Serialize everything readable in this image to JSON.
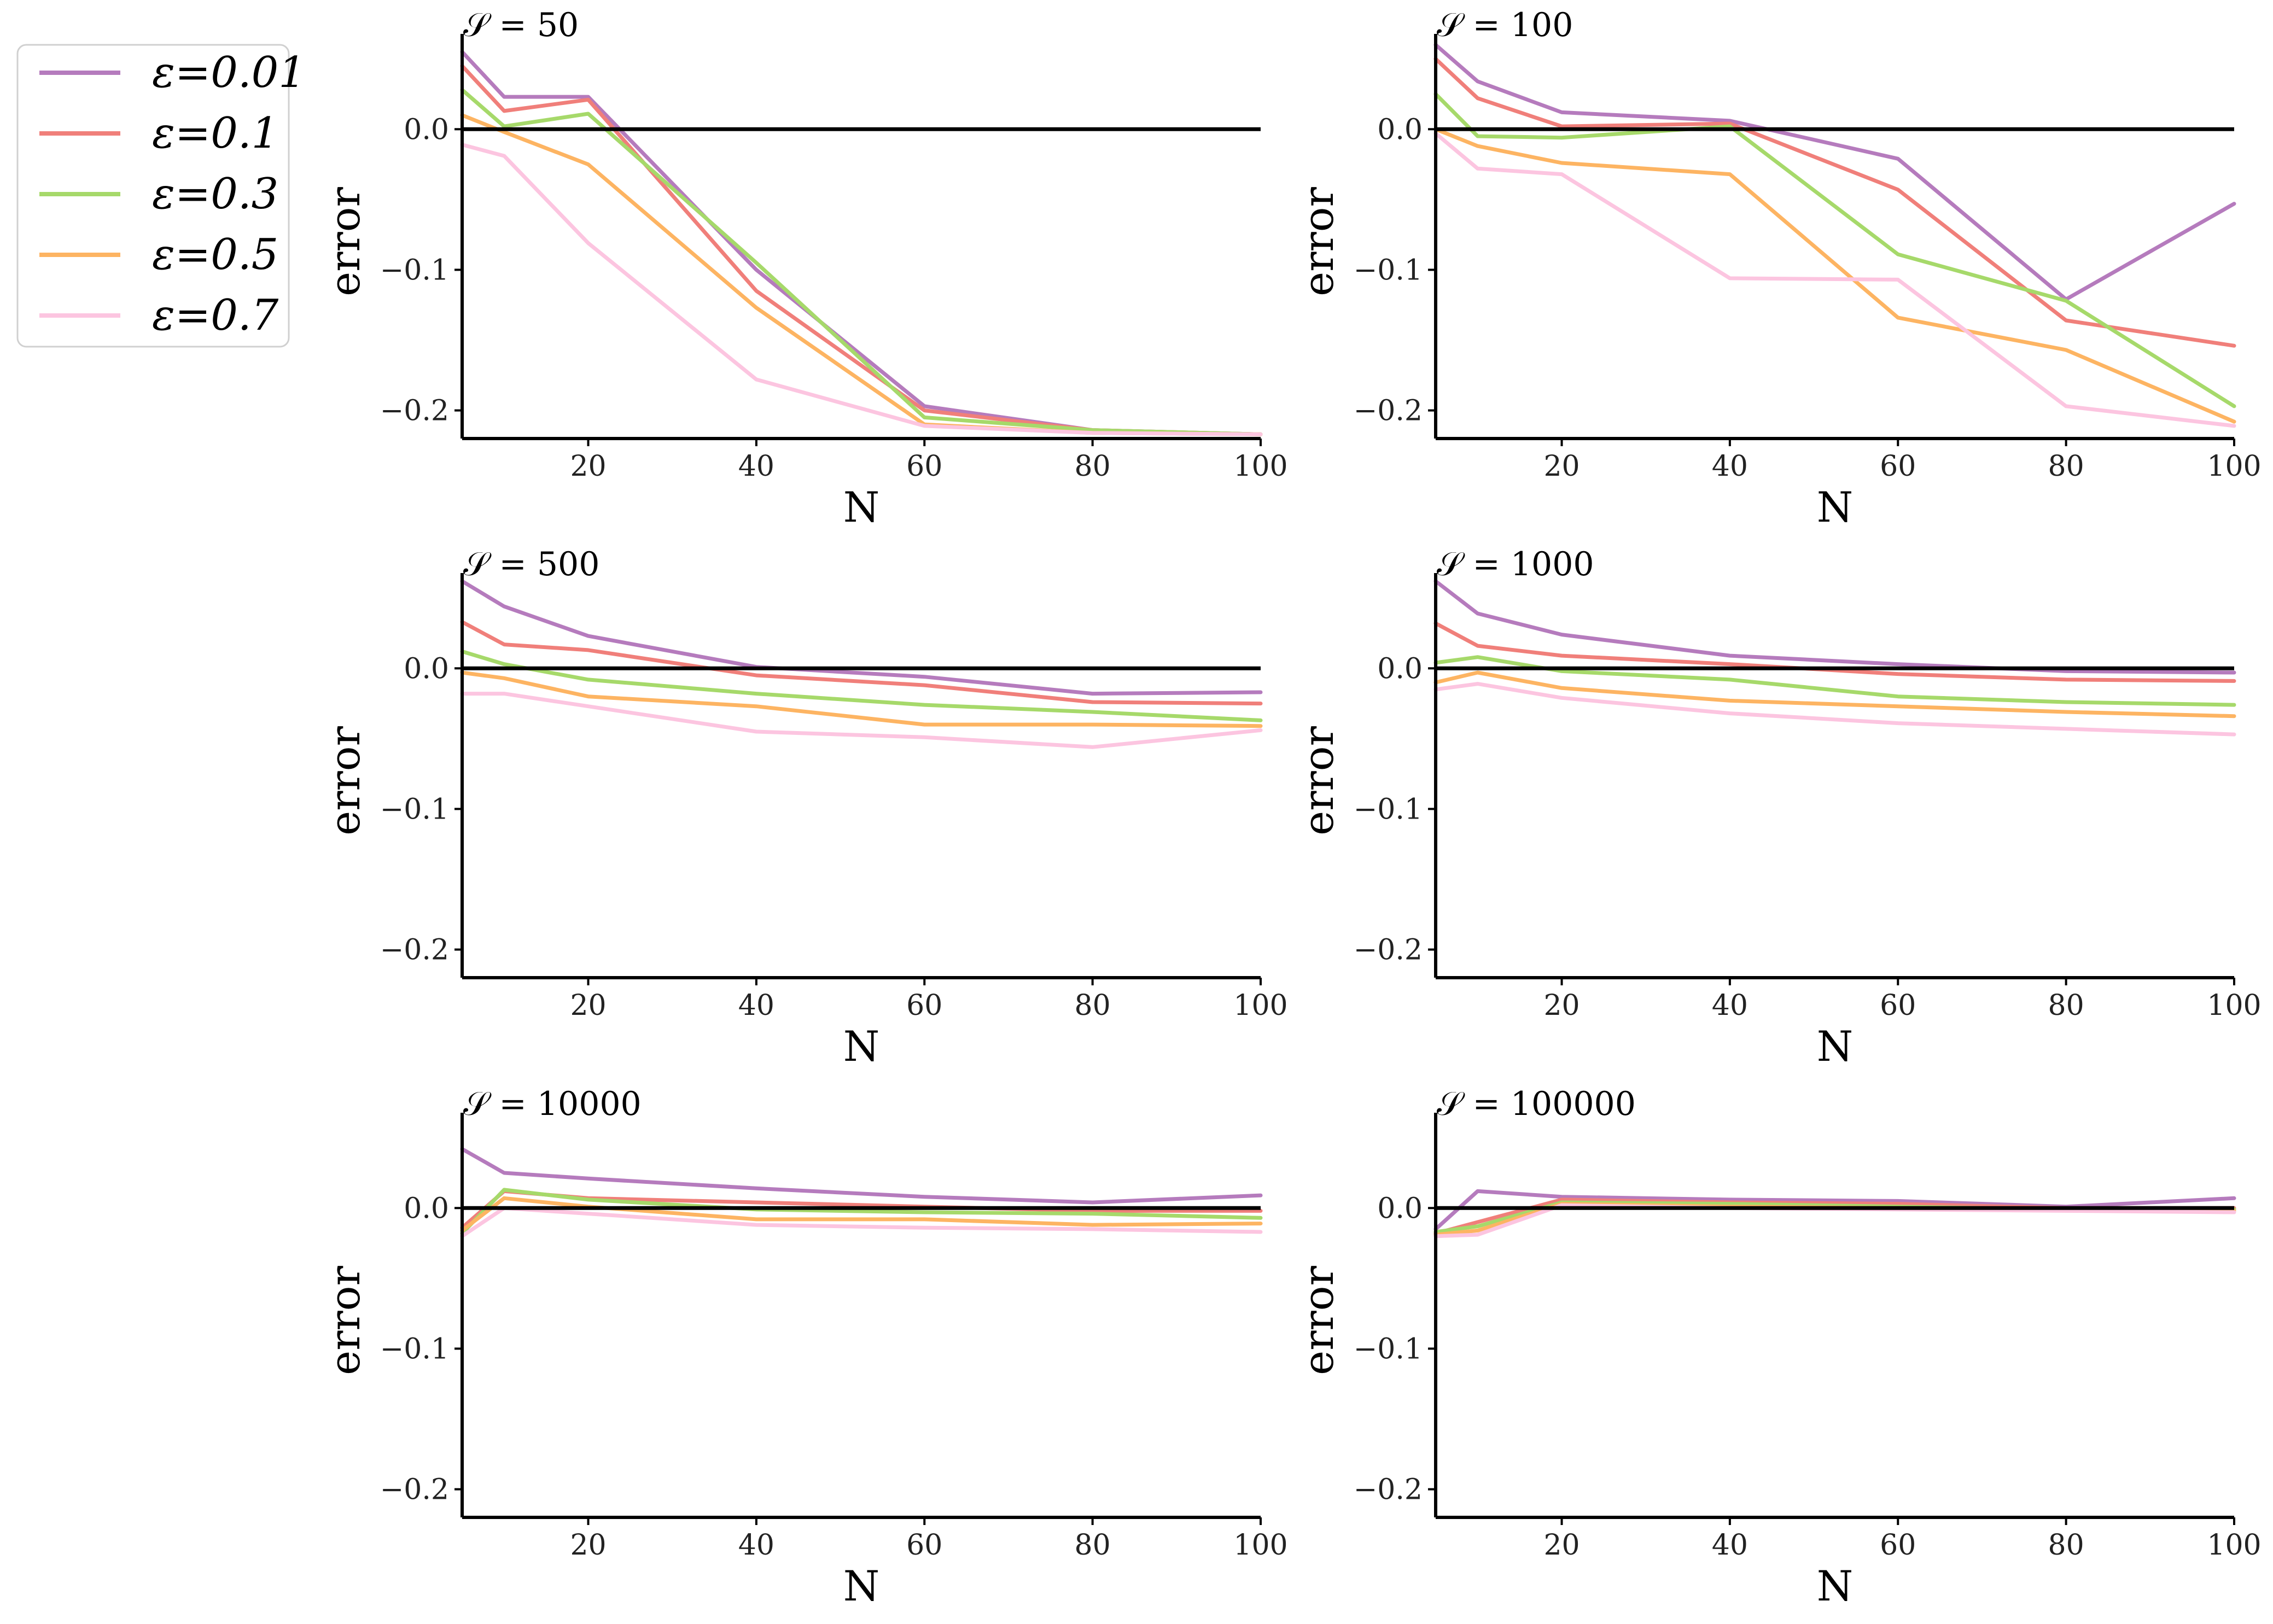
{
  "chart_data": [
    {
      "type": "line",
      "title": "𝒮 = 50",
      "xlabel": "N",
      "ylabel": "error",
      "xlim": [
        5,
        100
      ],
      "ylim": [
        -0.22,
        0.06
      ],
      "xticks": [
        20,
        40,
        60,
        80,
        100
      ],
      "yticks": [
        -0.2,
        -0.1,
        0.0
      ],
      "x": [
        5,
        10,
        20,
        40,
        60,
        80,
        100
      ],
      "series": [
        {
          "name": "ε=0.01",
          "values": [
            0.055,
            0.023,
            0.023,
            -0.1,
            -0.197,
            -0.214,
            -0.217
          ]
        },
        {
          "name": "ε=0.1",
          "values": [
            0.045,
            0.013,
            0.021,
            -0.115,
            -0.2,
            -0.214,
            -0.217
          ]
        },
        {
          "name": "ε=0.3",
          "values": [
            0.028,
            0.002,
            0.011,
            -0.095,
            -0.205,
            -0.214,
            -0.217
          ]
        },
        {
          "name": "ε=0.5",
          "values": [
            0.01,
            -0.002,
            -0.025,
            -0.127,
            -0.21,
            -0.216,
            -0.217
          ]
        },
        {
          "name": "ε=0.7",
          "values": [
            -0.011,
            -0.019,
            -0.081,
            -0.178,
            -0.211,
            -0.216,
            -0.217
          ]
        }
      ]
    },
    {
      "type": "line",
      "title": "𝒮 = 100",
      "xlabel": "N",
      "ylabel": "error",
      "xlim": [
        5,
        100
      ],
      "ylim": [
        -0.22,
        0.06
      ],
      "xticks": [
        20,
        40,
        60,
        80,
        100
      ],
      "yticks": [
        -0.2,
        -0.1,
        0.0
      ],
      "x": [
        5,
        10,
        20,
        40,
        60,
        80,
        100
      ],
      "series": [
        {
          "name": "ε=0.01",
          "values": [
            0.06,
            0.034,
            0.012,
            0.006,
            -0.021,
            -0.121,
            -0.053
          ]
        },
        {
          "name": "ε=0.1",
          "values": [
            0.05,
            0.022,
            0.002,
            0.004,
            -0.043,
            -0.136,
            -0.154
          ]
        },
        {
          "name": "ε=0.3",
          "values": [
            0.025,
            -0.005,
            -0.006,
            0.002,
            -0.089,
            -0.122,
            -0.197
          ]
        },
        {
          "name": "ε=0.5",
          "values": [
            0.0,
            -0.012,
            -0.024,
            -0.032,
            -0.134,
            -0.157,
            -0.208
          ]
        },
        {
          "name": "ε=0.7",
          "values": [
            -0.003,
            -0.028,
            -0.032,
            -0.106,
            -0.107,
            -0.197,
            -0.211
          ]
        }
      ]
    },
    {
      "type": "line",
      "title": "𝒮 = 500",
      "xlabel": "N",
      "ylabel": "error",
      "xlim": [
        5,
        100
      ],
      "ylim": [
        -0.22,
        0.06
      ],
      "xticks": [
        20,
        40,
        60,
        80,
        100
      ],
      "yticks": [
        -0.2,
        -0.1,
        0.0
      ],
      "x": [
        5,
        10,
        20,
        40,
        60,
        80,
        100
      ],
      "series": [
        {
          "name": "ε=0.01",
          "values": [
            0.062,
            0.044,
            0.023,
            0.001,
            -0.006,
            -0.018,
            -0.017
          ]
        },
        {
          "name": "ε=0.1",
          "values": [
            0.033,
            0.017,
            0.013,
            -0.005,
            -0.012,
            -0.024,
            -0.025
          ]
        },
        {
          "name": "ε=0.3",
          "values": [
            0.012,
            0.003,
            -0.008,
            -0.018,
            -0.026,
            -0.031,
            -0.037
          ]
        },
        {
          "name": "ε=0.5",
          "values": [
            -0.003,
            -0.007,
            -0.02,
            -0.027,
            -0.04,
            -0.04,
            -0.041
          ]
        },
        {
          "name": "ε=0.7",
          "values": [
            -0.018,
            -0.018,
            -0.027,
            -0.045,
            -0.049,
            -0.056,
            -0.044
          ]
        }
      ]
    },
    {
      "type": "line",
      "title": "𝒮 = 1000",
      "xlabel": "N",
      "ylabel": "error",
      "xlim": [
        5,
        100
      ],
      "ylim": [
        -0.22,
        0.06
      ],
      "xticks": [
        20,
        40,
        60,
        80,
        100
      ],
      "yticks": [
        -0.2,
        -0.1,
        0.0
      ],
      "x": [
        5,
        10,
        20,
        40,
        60,
        80,
        100
      ],
      "series": [
        {
          "name": "ε=0.01",
          "values": [
            0.062,
            0.039,
            0.024,
            0.009,
            0.003,
            -0.002,
            -0.003
          ]
        },
        {
          "name": "ε=0.1",
          "values": [
            0.032,
            0.016,
            0.009,
            0.003,
            -0.004,
            -0.008,
            -0.009
          ]
        },
        {
          "name": "ε=0.3",
          "values": [
            0.004,
            0.008,
            -0.002,
            -0.008,
            -0.02,
            -0.024,
            -0.026
          ]
        },
        {
          "name": "ε=0.5",
          "values": [
            -0.01,
            -0.003,
            -0.014,
            -0.023,
            -0.027,
            -0.031,
            -0.034
          ]
        },
        {
          "name": "ε=0.7",
          "values": [
            -0.015,
            -0.011,
            -0.021,
            -0.032,
            -0.039,
            -0.043,
            -0.047
          ]
        }
      ]
    },
    {
      "type": "line",
      "title": "𝒮 = 10000",
      "xlabel": "N",
      "ylabel": "error",
      "xlim": [
        5,
        100
      ],
      "ylim": [
        -0.22,
        0.06
      ],
      "xticks": [
        20,
        40,
        60,
        80,
        100
      ],
      "yticks": [
        -0.2,
        -0.1,
        0.0
      ],
      "x": [
        5,
        10,
        20,
        40,
        60,
        80,
        100
      ],
      "series": [
        {
          "name": "ε=0.01",
          "values": [
            0.042,
            0.025,
            0.021,
            0.014,
            0.008,
            0.004,
            0.009
          ]
        },
        {
          "name": "ε=0.1",
          "values": [
            -0.014,
            0.012,
            0.007,
            0.004,
            0.001,
            -0.002,
            -0.002
          ]
        },
        {
          "name": "ε=0.3",
          "values": [
            -0.018,
            0.013,
            0.006,
            -0.001,
            -0.003,
            -0.004,
            -0.007
          ]
        },
        {
          "name": "ε=0.5",
          "values": [
            -0.016,
            0.007,
            0.001,
            -0.008,
            -0.008,
            -0.012,
            -0.011
          ]
        },
        {
          "name": "ε=0.7",
          "values": [
            -0.02,
            0.0,
            -0.004,
            -0.012,
            -0.014,
            -0.015,
            -0.017
          ]
        }
      ]
    },
    {
      "type": "line",
      "title": "𝒮 = 100000",
      "xlabel": "N",
      "ylabel": "error",
      "xlim": [
        5,
        100
      ],
      "ylim": [
        -0.22,
        0.06
      ],
      "xticks": [
        20,
        40,
        60,
        80,
        100
      ],
      "yticks": [
        -0.2,
        -0.1,
        0.0
      ],
      "x": [
        5,
        10,
        20,
        40,
        60,
        80,
        100
      ],
      "series": [
        {
          "name": "ε=0.01",
          "values": [
            -0.015,
            0.012,
            0.008,
            0.006,
            0.005,
            0.001,
            0.007
          ]
        },
        {
          "name": "ε=0.1",
          "values": [
            -0.018,
            -0.01,
            0.006,
            0.004,
            0.003,
            0.0,
            0.0
          ]
        },
        {
          "name": "ε=0.3",
          "values": [
            -0.017,
            -0.013,
            0.004,
            0.003,
            0.001,
            -0.001,
            -0.001
          ]
        },
        {
          "name": "ε=0.5",
          "values": [
            -0.019,
            -0.016,
            0.003,
            0.001,
            0.0,
            -0.001,
            -0.002
          ]
        },
        {
          "name": "ε=0.7",
          "values": [
            -0.02,
            -0.019,
            0.002,
            0.0,
            -0.001,
            -0.002,
            -0.003
          ]
        }
      ]
    }
  ],
  "legend": {
    "placement": "left of plots",
    "entries": [
      {
        "label": "ε=0.01",
        "color": "#b57bbd"
      },
      {
        "label": "ε=0.1",
        "color": "#f07f7a"
      },
      {
        "label": "ε=0.3",
        "color": "#a6d96a"
      },
      {
        "label": "ε=0.5",
        "color": "#fdb462"
      },
      {
        "label": "ε=0.7",
        "color": "#fcc5e0"
      }
    ]
  }
}
